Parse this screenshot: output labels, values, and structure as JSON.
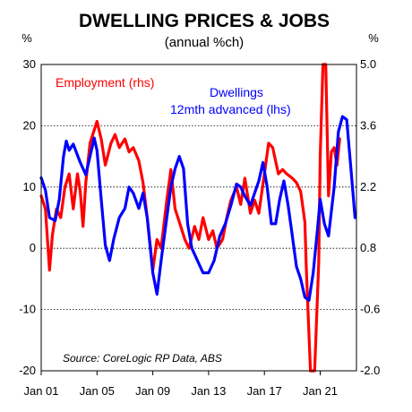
{
  "chart_data": {
    "type": "line",
    "title": "DWELLING PRICES & JOBS",
    "subtitle": "(annual %ch)",
    "left_unit": "%",
    "right_unit": "%",
    "source": "Source: CoreLogic RP Data, ABS",
    "x_ticks": [
      "Jan 01",
      "Jan 05",
      "Jan 09",
      "Jan 13",
      "Jan 17",
      "Jan 21"
    ],
    "x_range": [
      2001.0,
      2023.6
    ],
    "y_left": {
      "min": -20,
      "max": 30,
      "ticks": [
        "30",
        "20",
        "10",
        "0",
        "-10",
        "-20"
      ]
    },
    "y_right": {
      "min": -2.0,
      "max": 5.0,
      "ticks": [
        "5.0",
        "3.6",
        "2.2",
        "0.8",
        "-0.6",
        "-2.0"
      ]
    },
    "grid": "dotted horizontal at left-axis ticks",
    "series": [
      {
        "name": "Employment (rhs)",
        "axis": "right",
        "color": "#ff0000",
        "points": [
          [
            2001.0,
            2.0
          ],
          [
            2001.3,
            1.7
          ],
          [
            2001.6,
            0.3
          ],
          [
            2001.8,
            1.1
          ],
          [
            2002.1,
            1.7
          ],
          [
            2002.4,
            1.5
          ],
          [
            2002.7,
            2.2
          ],
          [
            2003.0,
            2.5
          ],
          [
            2003.3,
            1.7
          ],
          [
            2003.6,
            2.5
          ],
          [
            2003.8,
            2.1
          ],
          [
            2004.0,
            1.3
          ],
          [
            2004.2,
            2.3
          ],
          [
            2004.5,
            3.2
          ],
          [
            2004.8,
            3.5
          ],
          [
            2005.0,
            3.7
          ],
          [
            2005.3,
            3.3
          ],
          [
            2005.6,
            2.7
          ],
          [
            2006.0,
            3.2
          ],
          [
            2006.3,
            3.4
          ],
          [
            2006.6,
            3.1
          ],
          [
            2007.0,
            3.3
          ],
          [
            2007.3,
            3.0
          ],
          [
            2007.6,
            3.1
          ],
          [
            2008.0,
            2.8
          ],
          [
            2008.3,
            2.3
          ],
          [
            2008.6,
            1.5
          ],
          [
            2009.0,
            0.3
          ],
          [
            2009.3,
            1.0
          ],
          [
            2009.6,
            0.8
          ],
          [
            2010.0,
            1.9
          ],
          [
            2010.3,
            2.6
          ],
          [
            2010.6,
            1.7
          ],
          [
            2011.0,
            1.3
          ],
          [
            2011.3,
            1.0
          ],
          [
            2011.6,
            0.8
          ],
          [
            2012.0,
            1.3
          ],
          [
            2012.3,
            1.0
          ],
          [
            2012.6,
            1.5
          ],
          [
            2013.0,
            1.0
          ],
          [
            2013.3,
            1.2
          ],
          [
            2013.6,
            0.8
          ],
          [
            2014.0,
            1.0
          ],
          [
            2014.3,
            1.5
          ],
          [
            2014.6,
            1.9
          ],
          [
            2015.0,
            2.2
          ],
          [
            2015.3,
            1.8
          ],
          [
            2015.6,
            2.4
          ],
          [
            2016.0,
            1.6
          ],
          [
            2016.3,
            1.9
          ],
          [
            2016.6,
            1.6
          ],
          [
            2017.0,
            2.5
          ],
          [
            2017.3,
            3.2
          ],
          [
            2017.6,
            3.1
          ],
          [
            2018.0,
            2.5
          ],
          [
            2018.3,
            2.6
          ],
          [
            2018.6,
            2.5
          ],
          [
            2019.0,
            2.4
          ],
          [
            2019.3,
            2.3
          ],
          [
            2019.6,
            2.1
          ],
          [
            2019.9,
            1.4
          ],
          [
            2020.0,
            0.4
          ],
          [
            2020.3,
            -2.0
          ],
          [
            2020.6,
            -2.0
          ],
          [
            2020.9,
            0.5
          ],
          [
            2021.0,
            2.9
          ],
          [
            2021.2,
            5.0
          ],
          [
            2021.4,
            5.0
          ],
          [
            2021.6,
            2.0
          ],
          [
            2021.8,
            3.0
          ],
          [
            2022.0,
            3.1
          ],
          [
            2022.2,
            2.7
          ],
          [
            2022.4,
            3.3
          ]
        ]
      },
      {
        "name": "Dwellings 12mth advanced (lhs)",
        "axis": "left",
        "color": "#0000ff",
        "points": [
          [
            2001.0,
            11.5
          ],
          [
            2001.3,
            9.5
          ],
          [
            2001.6,
            5.0
          ],
          [
            2002.0,
            4.5
          ],
          [
            2002.3,
            8.0
          ],
          [
            2002.6,
            15.0
          ],
          [
            2002.8,
            17.5
          ],
          [
            2003.0,
            16.0
          ],
          [
            2003.3,
            17.0
          ],
          [
            2003.8,
            14.0
          ],
          [
            2004.2,
            12.0
          ],
          [
            2004.5,
            15.0
          ],
          [
            2004.8,
            18.0
          ],
          [
            2005.0,
            16.0
          ],
          [
            2005.3,
            8.0
          ],
          [
            2005.6,
            0.5
          ],
          [
            2005.9,
            -2.0
          ],
          [
            2006.2,
            1.5
          ],
          [
            2006.6,
            5.0
          ],
          [
            2007.0,
            6.5
          ],
          [
            2007.3,
            10.0
          ],
          [
            2007.6,
            9.0
          ],
          [
            2008.0,
            6.5
          ],
          [
            2008.3,
            9.0
          ],
          [
            2008.6,
            5.0
          ],
          [
            2009.0,
            -4.0
          ],
          [
            2009.3,
            -7.5
          ],
          [
            2009.6,
            -2.0
          ],
          [
            2010.0,
            5.0
          ],
          [
            2010.3,
            10.0
          ],
          [
            2010.6,
            13.0
          ],
          [
            2010.9,
            15.0
          ],
          [
            2011.2,
            13.0
          ],
          [
            2011.5,
            4.0
          ],
          [
            2011.8,
            0.0
          ],
          [
            2012.2,
            -2.0
          ],
          [
            2012.6,
            -4.0
          ],
          [
            2013.0,
            -4.0
          ],
          [
            2013.4,
            -2.0
          ],
          [
            2013.8,
            2.0
          ],
          [
            2014.2,
            4.0
          ],
          [
            2014.6,
            7.0
          ],
          [
            2015.0,
            10.5
          ],
          [
            2015.3,
            10.0
          ],
          [
            2015.6,
            8.5
          ],
          [
            2016.0,
            7.0
          ],
          [
            2016.3,
            9.0
          ],
          [
            2016.6,
            11.0
          ],
          [
            2016.9,
            14.0
          ],
          [
            2017.2,
            10.0
          ],
          [
            2017.5,
            4.0
          ],
          [
            2017.8,
            4.0
          ],
          [
            2018.1,
            8.0
          ],
          [
            2018.4,
            11.0
          ],
          [
            2018.7,
            7.0
          ],
          [
            2019.0,
            2.0
          ],
          [
            2019.3,
            -3.0
          ],
          [
            2019.6,
            -5.0
          ],
          [
            2019.9,
            -8.0
          ],
          [
            2020.2,
            -8.5
          ],
          [
            2020.5,
            -4.0
          ],
          [
            2020.8,
            3.0
          ],
          [
            2021.0,
            8.0
          ],
          [
            2021.3,
            4.0
          ],
          [
            2021.6,
            2.0
          ],
          [
            2022.0,
            10.0
          ],
          [
            2022.3,
            19.0
          ],
          [
            2022.6,
            21.5
          ],
          [
            2022.9,
            21.0
          ],
          [
            2023.2,
            13.0
          ],
          [
            2023.5,
            5.0
          ]
        ]
      }
    ]
  }
}
